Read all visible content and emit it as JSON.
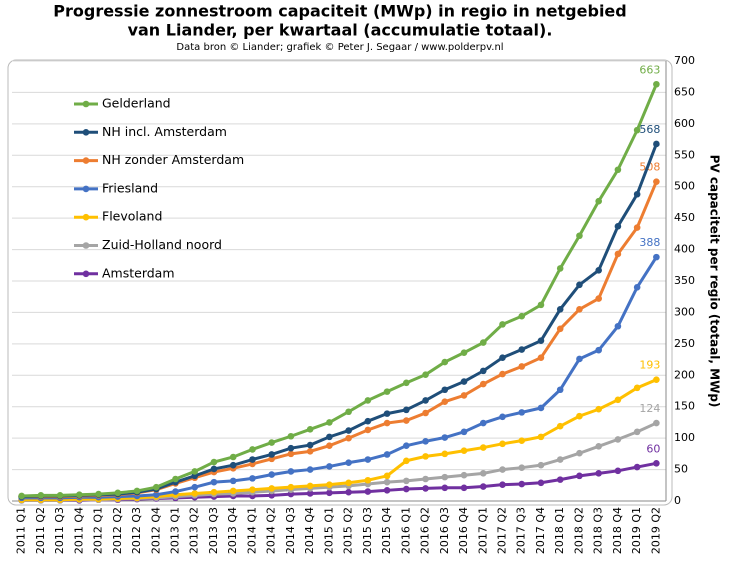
{
  "chart_data": {
    "type": "line",
    "title": [
      "Progressie zonnestroom capaciteit (MWp) in regio in netgebied",
      "van Liander, per kwartaal (accumulatie  totaal)."
    ],
    "subtitle": "Data bron © Liander; grafiek © Peter J. Segaar / www.polderpv.nl",
    "y_label": "PV capaciteit per regio (totaal, MWp)",
    "categories": [
      "2011 Q1",
      "2011 Q2",
      "2011 Q3",
      "2011 Q4",
      "2012 Q1",
      "2012 Q2",
      "2012 Q3",
      "2012 Q4",
      "2013 Q1",
      "2013 Q2",
      "2013 Q3",
      "2013 Q4",
      "2014 Q1",
      "2014 Q2",
      "2014 Q3",
      "2014 Q4",
      "2015 Q1",
      "2015 Q2",
      "2015 Q3",
      "2015 Q4",
      "2016 Q1",
      "2016 Q2",
      "2016 Q3",
      "2016 Q4",
      "2017 Q1",
      "2017 Q2",
      "2017 Q3",
      "2017 Q4",
      "2018 Q1",
      "2018 Q2",
      "2018 Q3",
      "2018 Q4",
      "2019 Q1",
      "2019 Q2"
    ],
    "series": [
      {
        "name": "Gelderland",
        "color": "#70ad47",
        "values": [
          8,
          9,
          9,
          10,
          11,
          13,
          16,
          22,
          35,
          47,
          62,
          70,
          82,
          93,
          103,
          114,
          125,
          142,
          160,
          174,
          188,
          201,
          221,
          236,
          252,
          281,
          294,
          312,
          370,
          422,
          477,
          527,
          590,
          663
        ]
      },
      {
        "name": "NH incl. Amsterdam",
        "color": "#1f4e79",
        "values": [
          7,
          8,
          8,
          9,
          10,
          11,
          14,
          19,
          30,
          40,
          51,
          57,
          66,
          74,
          84,
          89,
          102,
          112,
          127,
          139,
          145,
          160,
          177,
          190,
          207,
          228,
          241,
          255,
          305,
          344,
          367,
          437,
          488,
          568
        ]
      },
      {
        "name": "NH zonder Amsterdam",
        "color": "#ed7d31",
        "values": [
          7,
          7,
          7,
          8,
          9,
          10,
          13,
          18,
          28,
          37,
          46,
          52,
          59,
          67,
          75,
          79,
          88,
          100,
          113,
          124,
          128,
          140,
          158,
          168,
          186,
          202,
          214,
          228,
          274,
          305,
          322,
          393,
          435,
          508
        ]
      },
      {
        "name": "Friesland",
        "color": "#4472c4",
        "values": [
          5,
          5,
          5,
          6,
          6,
          7,
          8,
          10,
          15,
          22,
          30,
          32,
          36,
          42,
          47,
          50,
          55,
          61,
          66,
          74,
          88,
          95,
          101,
          110,
          124,
          134,
          141,
          148,
          177,
          226,
          240,
          278,
          340,
          388
        ]
      },
      {
        "name": "Flevoland",
        "color": "#ffc000",
        "values": [
          2,
          2,
          2,
          3,
          3,
          4,
          5,
          7,
          10,
          12,
          14,
          16,
          18,
          20,
          22,
          24,
          26,
          29,
          33,
          40,
          64,
          71,
          75,
          80,
          85,
          91,
          96,
          102,
          119,
          135,
          146,
          161,
          180,
          193
        ]
      },
      {
        "name": "Zuid-Holland noord",
        "color": "#a5a5a5",
        "values": [
          1,
          1,
          1,
          2,
          2,
          3,
          4,
          5,
          7,
          9,
          11,
          12,
          14,
          16,
          18,
          20,
          22,
          24,
          27,
          30,
          32,
          35,
          38,
          41,
          44,
          50,
          53,
          57,
          66,
          76,
          87,
          98,
          110,
          124
        ]
      },
      {
        "name": "Amsterdam",
        "color": "#7030a0",
        "values": [
          1,
          1,
          1,
          1,
          2,
          2,
          3,
          4,
          5,
          6,
          7,
          8,
          8,
          9,
          11,
          12,
          13,
          14,
          15,
          17,
          19,
          20,
          21,
          21,
          23,
          26,
          27,
          29,
          34,
          40,
          44,
          48,
          54,
          60
        ]
      }
    ],
    "ylim": [
      0,
      700
    ],
    "yticks": [
      0,
      50,
      100,
      150,
      200,
      250,
      300,
      350,
      400,
      450,
      500,
      550,
      600,
      650,
      700
    ],
    "grid": true
  }
}
